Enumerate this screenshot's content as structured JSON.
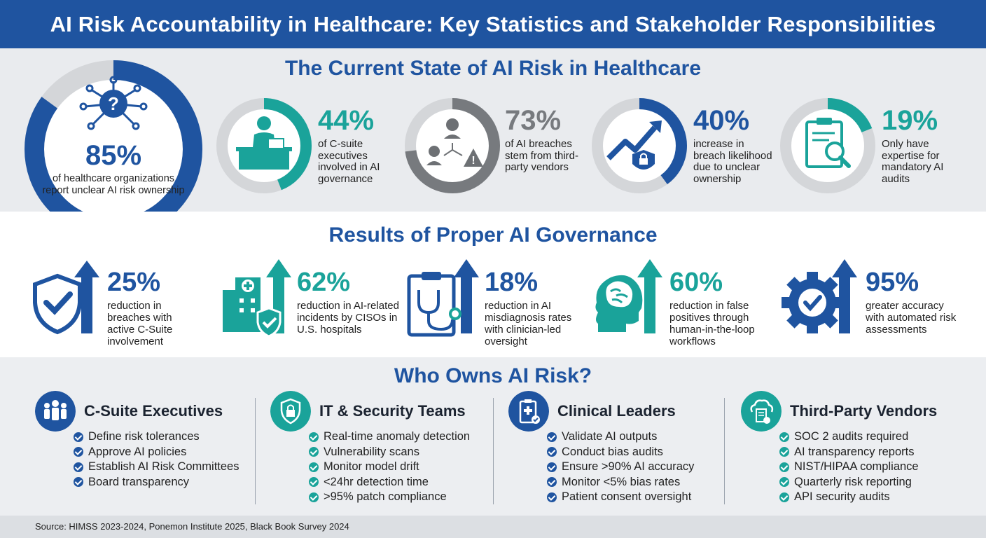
{
  "title": "AI Risk Accountability in Healthcare: Key Statistics and Stakeholder Responsibilities",
  "colors": {
    "navy": "#1f54a0",
    "teal": "#1aa39a",
    "gray": "#777a7e",
    "ring_track": "#d4d6d9"
  },
  "current_state": {
    "heading": "The Current State of AI Risk in Healthcare",
    "headline": {
      "value": "85%",
      "fraction": 0.85,
      "description": "of healthcare organizations report unclear AI risk ownership",
      "icon": "network-question-icon"
    },
    "stats": [
      {
        "value": "44%",
        "fraction": 0.44,
        "description": "of C-suite executives involved in AI governance",
        "icon": "executive-desk-icon",
        "color": "#1aa39a"
      },
      {
        "value": "73%",
        "fraction": 0.73,
        "description": "of AI breaches stem from third-party vendors",
        "icon": "vendor-warning-icon",
        "color": "#777a7e"
      },
      {
        "value": "40%",
        "fraction": 0.4,
        "description": "increase in breach likelihood due to unclear ownership",
        "icon": "trend-lock-icon",
        "color": "#1f54a0"
      },
      {
        "value": "19%",
        "fraction": 0.19,
        "description": "Only have expertise for mandatory AI audits",
        "icon": "clipboard-search-icon",
        "color": "#1aa39a"
      }
    ]
  },
  "results": {
    "heading": "Results of Proper AI Governance",
    "items": [
      {
        "value": "25%",
        "description": "reduction in breaches with active C-Suite involvement",
        "icon": "shield-check-arrow-icon",
        "color": "#1f54a0"
      },
      {
        "value": "62%",
        "description": "reduction in AI-related incidents by CISOs in U.S. hospitals",
        "icon": "hospital-shield-arrow-icon",
        "color": "#1aa39a"
      },
      {
        "value": "18%",
        "description": "reduction in AI misdiagnosis rates with clinician-led oversight",
        "icon": "clipboard-stethoscope-arrow-icon",
        "color": "#1f54a0"
      },
      {
        "value": "60%",
        "description": "reduction in false positives through human-in-the-loop workflows",
        "icon": "head-brain-arrow-icon",
        "color": "#1aa39a"
      },
      {
        "value": "95%",
        "description": "greater accuracy with automated risk assessments",
        "icon": "gear-check-arrow-icon",
        "color": "#1f54a0"
      }
    ]
  },
  "owners": {
    "heading": "Who Owns AI Risk?",
    "groups": [
      {
        "name": "C-Suite Executives",
        "icon": "people-group-icon",
        "color": "#1f54a0",
        "items": [
          "Define risk tolerances",
          "Approve AI policies",
          "Establish AI Risk Committees",
          "Board transparency"
        ]
      },
      {
        "name": "IT & Security Teams",
        "icon": "lock-shield-circuit-icon",
        "color": "#1aa39a",
        "items": [
          "Real-time anomaly detection",
          "Vulnerability scans",
          "Monitor model drift",
          "<24hr detection time",
          ">95% patch compliance"
        ]
      },
      {
        "name": "Clinical Leaders",
        "icon": "medical-clipboard-icon",
        "color": "#1f54a0",
        "items": [
          "Validate AI outputs",
          "Conduct bias audits",
          "Ensure >90% AI accuracy",
          "Monitor <5% bias rates",
          "Patient consent oversight"
        ]
      },
      {
        "name": "Third-Party Vendors",
        "icon": "cloud-document-icon",
        "color": "#1aa39a",
        "items": [
          "SOC 2 audits required",
          "AI transparency reports",
          "NIST/HIPAA compliance",
          "Quarterly risk reporting",
          "API security audits"
        ]
      }
    ]
  },
  "source": "Source: HIMSS 2023-2024, Ponemon Institute 2025, Black Book Survey 2024"
}
